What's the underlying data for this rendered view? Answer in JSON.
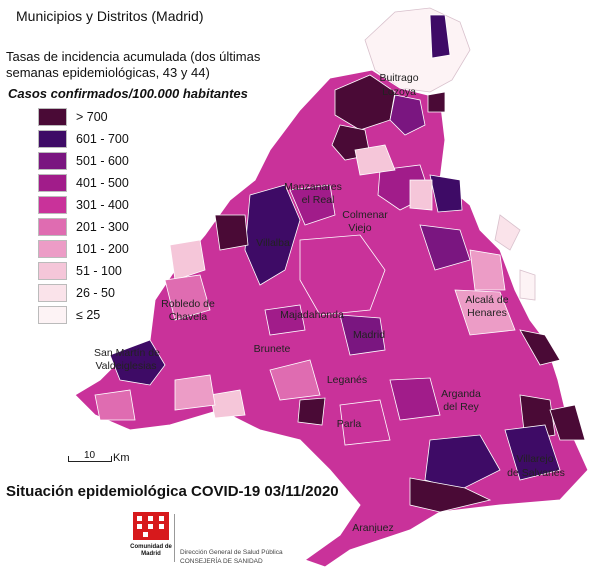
{
  "header": {
    "title": "Municipios y Distritos (Madrid)",
    "subtitle": "Tasas de incidencia acumulada (dos últimas semanas epidemiológicas, 43 y 44)",
    "casos": "Casos confirmados/100.000 habitantes"
  },
  "legend": {
    "items": [
      {
        "label": "> 700",
        "color": "#4a0a36"
      },
      {
        "label": "601 - 700",
        "color": "#3e0b66"
      },
      {
        "label": "501 - 600",
        "color": "#7a1680"
      },
      {
        "label": "401 - 500",
        "color": "#a11c8a"
      },
      {
        "label": "301 - 400",
        "color": "#c9329a"
      },
      {
        "label": "201 - 300",
        "color": "#df6cb1"
      },
      {
        "label": "101 - 200",
        "color": "#ec9cc6"
      },
      {
        "label": "51 - 100",
        "color": "#f5c6d9"
      },
      {
        "label": "26 - 50",
        "color": "#fae3ea"
      },
      {
        "label": "≤ 25",
        "color": "#fdf3f5"
      }
    ]
  },
  "places": {
    "buitrago": "Buitrago",
    "lozoya": "Lozoya",
    "manzanares": "Manzanares",
    "el_real": "el Real",
    "colmenar": "Colmenar",
    "viejo": "Viejo",
    "villalba": "Villalba",
    "robledo": "Robledo de",
    "chavela": "Chavela",
    "alcala": "Alcalá de",
    "henares": "Henares",
    "majadahonda": "Majadahonda",
    "madrid": "Madrid",
    "san_martin": "San Martín de",
    "valdeiglesias": "Valdeiglesias",
    "brunete": "Brunete",
    "leganes": "Leganés",
    "arganda": "Arganda",
    "del_rey": "del Rey",
    "parla": "Parla",
    "villarejo": "Villarejo",
    "salvanes": "de Salvanés",
    "aranjuez": "Aranjuez"
  },
  "scale": {
    "number": "10",
    "unit": "Km"
  },
  "footer": {
    "situacion": "Situación epidemiológica COVID-19  03/11/2020",
    "logo_text": "Comunidad de Madrid",
    "institution_line1": "Dirección General de Salud Pública",
    "institution_line2": "CONSEJERÍA DE SANIDAD"
  }
}
